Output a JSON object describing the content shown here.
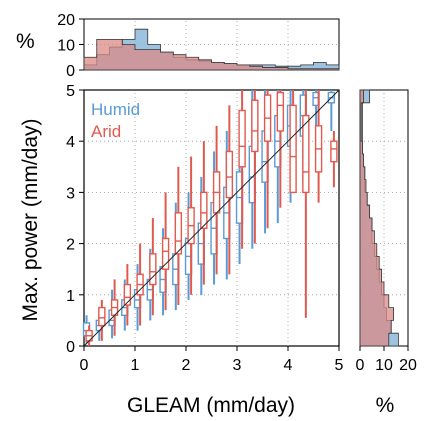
{
  "chart_data": {
    "type": "box",
    "xlabel": "GLEAM (mm/day)",
    "ylabel": "Max. power (mm/day)",
    "xlim": [
      0,
      5
    ],
    "ylim": [
      0,
      5
    ],
    "xticks": [
      "0",
      "1",
      "2",
      "3",
      "4",
      "5"
    ],
    "yticks": [
      "0",
      "1",
      "2",
      "3",
      "4",
      "5"
    ],
    "grid": "dotted",
    "one_to_one_line": true,
    "legend": {
      "placement": "top-left",
      "entries": [
        "Humid",
        "Arid"
      ]
    },
    "colors": {
      "Humid": "#5b9bd5",
      "Arid": "#e05a4f",
      "Humid_fill": "#8db8dc",
      "Arid_fill": "#d98a86"
    },
    "series": [
      {
        "name": "Humid",
        "boxes": [
          {
            "x": 0.05,
            "whislo": 0.05,
            "q1": 0.2,
            "med": 0.3,
            "q3": 0.45,
            "whishi": 0.6
          },
          {
            "x": 0.3,
            "whislo": 0.1,
            "q1": 0.3,
            "med": 0.4,
            "q3": 0.5,
            "whishi": 0.7
          },
          {
            "x": 0.55,
            "whislo": 0.15,
            "q1": 0.4,
            "med": 0.5,
            "q3": 0.7,
            "whishi": 1.1
          },
          {
            "x": 0.8,
            "whislo": 0.3,
            "q1": 0.6,
            "med": 0.75,
            "q3": 0.9,
            "whishi": 1.3
          },
          {
            "x": 1.05,
            "whislo": 0.3,
            "q1": 0.75,
            "med": 0.9,
            "q3": 1.1,
            "whishi": 1.6
          },
          {
            "x": 1.3,
            "whislo": 0.5,
            "q1": 0.9,
            "med": 1.1,
            "q3": 1.3,
            "whishi": 1.9
          },
          {
            "x": 1.55,
            "whislo": 0.6,
            "q1": 1.05,
            "med": 1.3,
            "q3": 1.55,
            "whishi": 2.3
          },
          {
            "x": 1.8,
            "whislo": 0.7,
            "q1": 1.2,
            "med": 1.5,
            "q3": 1.8,
            "whishi": 2.8
          },
          {
            "x": 2.05,
            "whislo": 0.9,
            "q1": 1.4,
            "med": 1.75,
            "q3": 2.1,
            "whishi": 3.0
          },
          {
            "x": 2.3,
            "whislo": 1.0,
            "q1": 1.6,
            "med": 2.0,
            "q3": 2.4,
            "whishi": 3.3
          },
          {
            "x": 2.55,
            "whislo": 1.2,
            "q1": 1.8,
            "med": 2.3,
            "q3": 2.8,
            "whishi": 3.8
          },
          {
            "x": 2.8,
            "whislo": 1.3,
            "q1": 2.1,
            "med": 2.6,
            "q3": 3.1,
            "whishi": 4.2
          },
          {
            "x": 3.05,
            "whislo": 1.6,
            "q1": 2.4,
            "med": 2.9,
            "q3": 3.4,
            "whishi": 4.6
          },
          {
            "x": 3.3,
            "whislo": 1.9,
            "q1": 2.8,
            "med": 3.3,
            "q3": 3.9,
            "whishi": 5.0
          },
          {
            "x": 3.55,
            "whislo": 2.2,
            "q1": 3.2,
            "med": 3.6,
            "q3": 4.2,
            "whishi": 5.0
          },
          {
            "x": 3.8,
            "whislo": 2.4,
            "q1": 3.5,
            "med": 4.0,
            "q3": 4.5,
            "whishi": 5.0
          },
          {
            "x": 4.05,
            "whislo": 2.8,
            "q1": 3.9,
            "med": 4.3,
            "q3": 4.7,
            "whishi": 5.0
          },
          {
            "x": 4.3,
            "whislo": 3.2,
            "q1": 4.1,
            "med": 4.5,
            "q3": 4.9,
            "whishi": 5.0
          },
          {
            "x": 4.55,
            "whislo": 3.6,
            "q1": 4.7,
            "med": 4.85,
            "q3": 4.95,
            "whishi": 5.0
          },
          {
            "x": 4.85,
            "whislo": 4.2,
            "q1": 4.75,
            "med": 4.85,
            "q3": 4.95,
            "whishi": 5.0
          }
        ]
      },
      {
        "name": "Arid",
        "boxes": [
          {
            "x": 0.1,
            "whislo": 0.0,
            "q1": 0.1,
            "med": 0.2,
            "q3": 0.3,
            "whishi": 0.4
          },
          {
            "x": 0.35,
            "whislo": 0.1,
            "q1": 0.4,
            "med": 0.55,
            "q3": 0.75,
            "whishi": 0.9
          },
          {
            "x": 0.6,
            "whislo": 0.2,
            "q1": 0.6,
            "med": 0.75,
            "q3": 0.9,
            "whishi": 1.3
          },
          {
            "x": 0.85,
            "whislo": 0.4,
            "q1": 0.8,
            "med": 0.95,
            "q3": 1.2,
            "whishi": 1.6
          },
          {
            "x": 1.1,
            "whislo": 0.4,
            "q1": 1.0,
            "med": 1.2,
            "q3": 1.4,
            "whishi": 2.0
          },
          {
            "x": 1.35,
            "whislo": 0.6,
            "q1": 1.2,
            "med": 1.45,
            "q3": 1.8,
            "whishi": 2.5
          },
          {
            "x": 1.6,
            "whislo": 0.7,
            "q1": 1.5,
            "med": 1.85,
            "q3": 2.1,
            "whishi": 3.0
          },
          {
            "x": 1.85,
            "whislo": 0.8,
            "q1": 1.8,
            "med": 2.05,
            "q3": 2.6,
            "whishi": 3.5
          },
          {
            "x": 2.1,
            "whislo": 1.0,
            "q1": 2.0,
            "med": 2.35,
            "q3": 2.7,
            "whishi": 3.7
          },
          {
            "x": 2.35,
            "whislo": 1.2,
            "q1": 2.3,
            "med": 2.6,
            "q3": 3.0,
            "whishi": 4.0
          },
          {
            "x": 2.6,
            "whislo": 1.4,
            "q1": 2.6,
            "med": 3.0,
            "q3": 3.4,
            "whishi": 4.3
          },
          {
            "x": 2.85,
            "whislo": 1.4,
            "q1": 2.9,
            "med": 3.3,
            "q3": 3.8,
            "whishi": 4.7
          },
          {
            "x": 3.1,
            "whislo": 1.9,
            "q1": 3.5,
            "med": 3.9,
            "q3": 4.6,
            "whishi": 5.0
          },
          {
            "x": 3.35,
            "whislo": 2.0,
            "q1": 3.8,
            "med": 4.2,
            "q3": 4.8,
            "whishi": 5.0
          },
          {
            "x": 3.6,
            "whislo": 2.3,
            "q1": 4.0,
            "med": 4.45,
            "q3": 4.9,
            "whishi": 5.0
          },
          {
            "x": 3.85,
            "whislo": 2.7,
            "q1": 4.2,
            "med": 4.7,
            "q3": 4.95,
            "whishi": 5.0
          },
          {
            "x": 4.1,
            "whislo": 3.0,
            "q1": 3.0,
            "med": 3.7,
            "q3": 4.7,
            "whishi": 5.0
          },
          {
            "x": 4.35,
            "whislo": 0.55,
            "q1": 3.0,
            "med": 3.4,
            "q3": 4.5,
            "whishi": 5.0
          },
          {
            "x": 4.6,
            "whislo": 2.8,
            "q1": 3.4,
            "med": 3.85,
            "q3": 4.3,
            "whishi": 5.0
          },
          {
            "x": 4.9,
            "whislo": 3.1,
            "q1": 3.6,
            "med": 3.85,
            "q3": 4.0,
            "whishi": 4.2
          }
        ]
      }
    ],
    "top_histogram": {
      "ylabel": "%",
      "ylim": [
        0,
        20
      ],
      "yticks": [
        "0",
        "10",
        "20"
      ],
      "bin_edges": [
        0,
        0.25,
        0.5,
        0.75,
        1,
        1.25,
        1.5,
        1.75,
        2,
        2.25,
        2.5,
        2.75,
        3,
        3.25,
        3.5,
        3.75,
        4,
        4.25,
        4.5,
        4.75,
        5
      ],
      "series": [
        {
          "name": "Humid",
          "values": [
            2,
            6,
            9,
            12,
            16,
            10,
            7,
            5,
            4,
            3.5,
            3,
            2.5,
            2,
            2,
            2,
            1.5,
            1.5,
            2,
            3,
            2
          ]
        },
        {
          "name": "Arid",
          "values": [
            5,
            12,
            12,
            10,
            8,
            8,
            7,
            6,
            5,
            4,
            3,
            2.5,
            2,
            1.5,
            1,
            1,
            0.5,
            0.5,
            0.5,
            0.5
          ]
        }
      ]
    },
    "right_histogram": {
      "xlabel": "%",
      "xlim": [
        0,
        20
      ],
      "xticks": [
        "0",
        "10",
        "20"
      ],
      "bin_edges": [
        0,
        0.25,
        0.5,
        0.75,
        1,
        1.25,
        1.5,
        1.75,
        2,
        2.25,
        2.5,
        2.75,
        3,
        3.25,
        3.5,
        3.75,
        4,
        4.25,
        4.5,
        4.75,
        5
      ],
      "series": [
        {
          "name": "Humid",
          "values": [
            16,
            13,
            11,
            10,
            9,
            8,
            7,
            6,
            5,
            5,
            4,
            3,
            2,
            2,
            1.5,
            1,
            1,
            1,
            1,
            4
          ]
        },
        {
          "name": "Arid",
          "values": [
            12,
            13,
            14,
            12,
            10,
            9,
            8,
            7,
            6,
            5,
            4,
            3,
            2.5,
            2,
            1.5,
            1,
            0.5,
            0.5,
            0.5,
            1.5
          ]
        }
      ]
    }
  }
}
